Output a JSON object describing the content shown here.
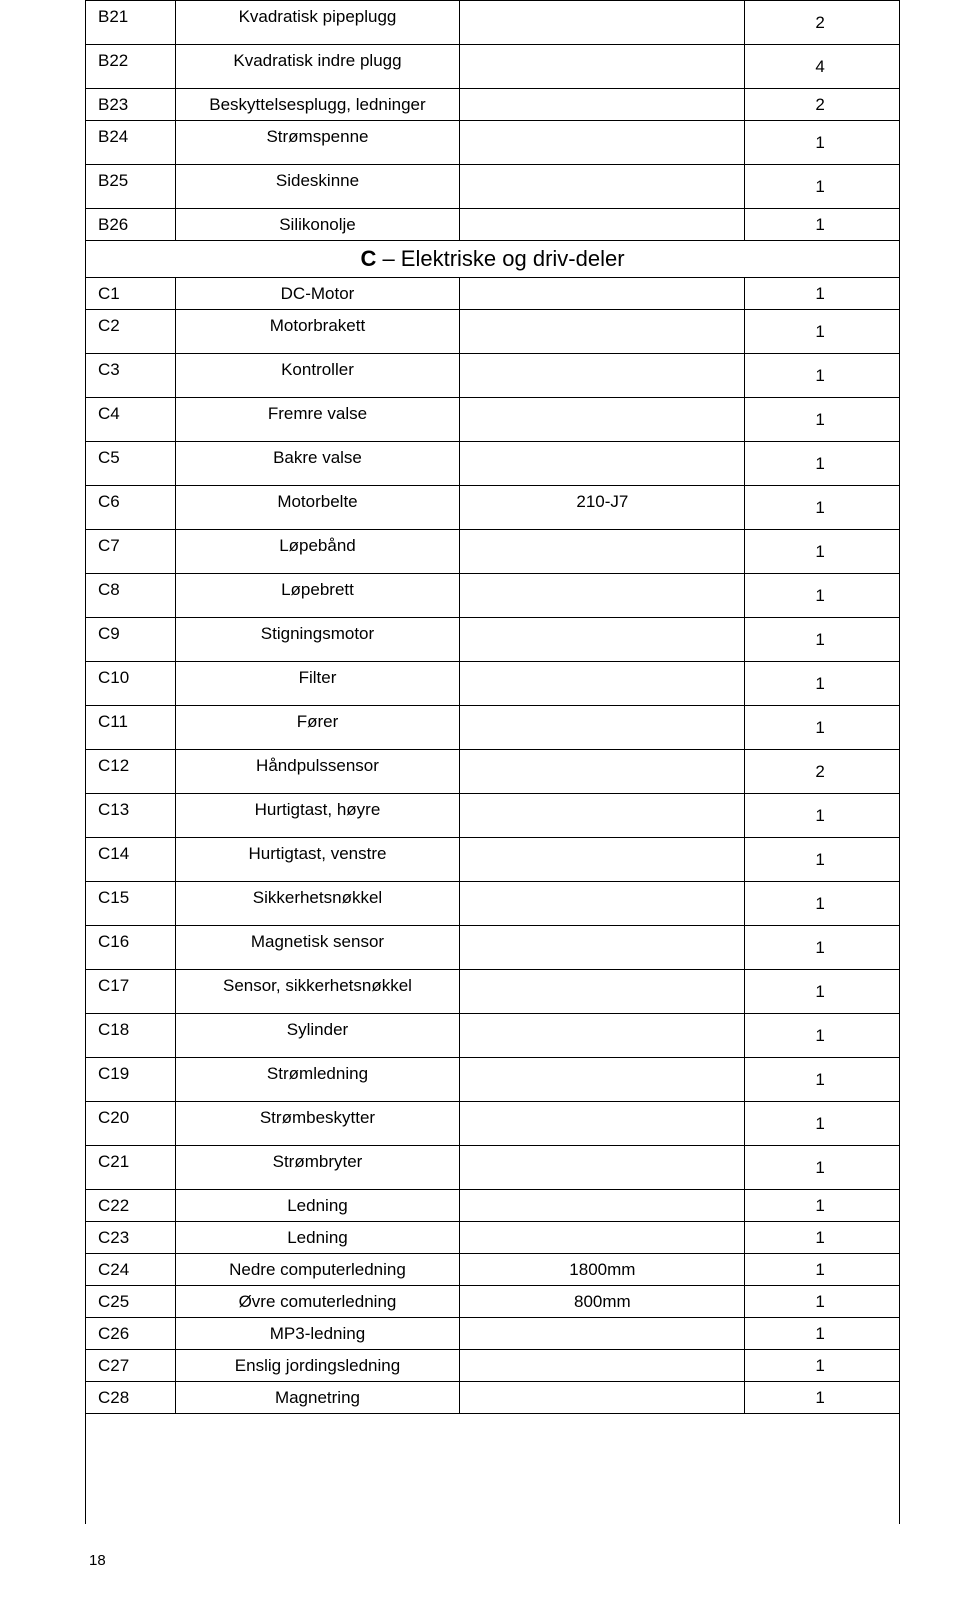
{
  "section_header": {
    "bold": "C",
    "rest": " – Elektriske og driv-deler"
  },
  "rows": [
    {
      "code": "B21",
      "desc": "Kvadratisk pipeplugg",
      "spec": "",
      "qty": "2",
      "tall": true
    },
    {
      "code": "B22",
      "desc": "Kvadratisk indre plugg",
      "spec": "",
      "qty": "4",
      "tall": true
    },
    {
      "code": "B23",
      "desc": "Beskyttelsesplugg, ledninger",
      "spec": "",
      "qty": "2"
    },
    {
      "code": "B24",
      "desc": "Strømspenne",
      "spec": "",
      "qty": "1",
      "tall": true
    },
    {
      "code": "B25",
      "desc": "Sideskinne",
      "spec": "",
      "qty": "1",
      "tall": true
    },
    {
      "code": "B26",
      "desc": "Silikonolje",
      "spec": "",
      "qty": "1"
    },
    {
      "section": true
    },
    {
      "code": "C1",
      "desc": "DC-Motor",
      "spec": "",
      "qty": "1"
    },
    {
      "code": "C2",
      "desc": "Motorbrakett",
      "spec": "",
      "qty": "1",
      "tall": true
    },
    {
      "code": "C3",
      "desc": "Kontroller",
      "spec": "",
      "qty": "1",
      "tall": true
    },
    {
      "code": "C4",
      "desc": "Fremre valse",
      "spec": "",
      "qty": "1",
      "tall": true
    },
    {
      "code": "C5",
      "desc": "Bakre valse",
      "spec": "",
      "qty": "1",
      "tall": true
    },
    {
      "code": "C6",
      "desc": "Motorbelte",
      "spec": "210-J7",
      "qty": "1",
      "tall": true
    },
    {
      "code": "C7",
      "desc": "Løpebånd",
      "spec": "",
      "qty": "1",
      "tall": true
    },
    {
      "code": "C8",
      "desc": "Løpebrett",
      "spec": "",
      "qty": "1",
      "tall": true
    },
    {
      "code": "C9",
      "desc": "Stigningsmotor",
      "spec": "",
      "qty": "1",
      "tall": true
    },
    {
      "code": "C10",
      "desc": "Filter",
      "spec": "",
      "qty": "1",
      "tall": true
    },
    {
      "code": "C11",
      "desc": "Fører",
      "spec": "",
      "qty": "1",
      "tall": true
    },
    {
      "code": "C12",
      "desc": "Håndpulssensor",
      "spec": "",
      "qty": "2",
      "tall": true
    },
    {
      "code": "C13",
      "desc": "Hurtigtast, høyre",
      "spec": "",
      "qty": "1",
      "tall": true
    },
    {
      "code": "C14",
      "desc": "Hurtigtast, venstre",
      "spec": "",
      "qty": "1",
      "tall": true
    },
    {
      "code": "C15",
      "desc": "Sikkerhetsnøkkel",
      "spec": "",
      "qty": "1",
      "tall": true
    },
    {
      "code": "C16",
      "desc": "Magnetisk sensor",
      "spec": "",
      "qty": "1",
      "tall": true
    },
    {
      "code": "C17",
      "desc": "Sensor, sikkerhetsnøkkel",
      "spec": "",
      "qty": "1",
      "tall": true
    },
    {
      "code": "C18",
      "desc": "Sylinder",
      "spec": "",
      "qty": "1",
      "tall": true
    },
    {
      "code": "C19",
      "desc": "Strømledning",
      "spec": "",
      "qty": "1",
      "tall": true
    },
    {
      "code": "C20",
      "desc": "Strømbeskytter",
      "spec": "",
      "qty": "1",
      "tall": true
    },
    {
      "code": "C21",
      "desc": "Strømbryter",
      "spec": "",
      "qty": "1",
      "tall": true
    },
    {
      "code": "C22",
      "desc": "Ledning",
      "spec": "",
      "qty": "1"
    },
    {
      "code": "C23",
      "desc": "Ledning",
      "spec": "",
      "qty": "1"
    },
    {
      "code": "C24",
      "desc": "Nedre computerledning",
      "spec": "1800mm",
      "qty": "1"
    },
    {
      "code": "C25",
      "desc": "Øvre comuterledning",
      "spec": "800mm",
      "qty": "1"
    },
    {
      "code": "C26",
      "desc": "MP3-ledning",
      "spec": "",
      "qty": "1"
    },
    {
      "code": "C27",
      "desc": "Enslig jordingsledning",
      "spec": "",
      "qty": "1"
    },
    {
      "code": "C28",
      "desc": "Magnetring",
      "spec": "",
      "qty": "1"
    }
  ],
  "page_number": "18"
}
